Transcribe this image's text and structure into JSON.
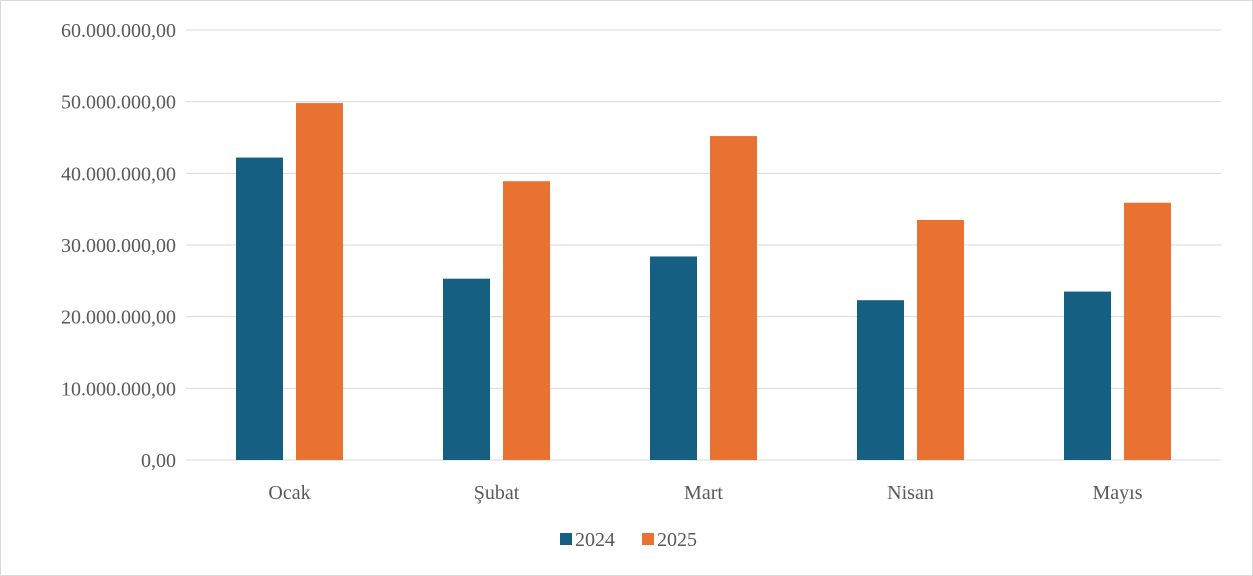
{
  "chart_data": {
    "type": "bar",
    "title": "",
    "xlabel": "",
    "ylabel": "",
    "categories": [
      "Ocak",
      "Şubat",
      "Mart",
      "Nisan",
      "Mayıs"
    ],
    "series": [
      {
        "name": "2024",
        "color": "#156082",
        "values": [
          42200000,
          25300000,
          28400000,
          22300000,
          23500000
        ]
      },
      {
        "name": "2025",
        "color": "#E97132",
        "values": [
          49800000,
          38900000,
          45200000,
          33500000,
          35900000
        ]
      }
    ],
    "ylim": [
      0,
      60000000
    ],
    "yticks": [
      0,
      10000000,
      20000000,
      30000000,
      40000000,
      50000000,
      60000000
    ],
    "ytick_labels": [
      "0,00",
      "10.000.000,00",
      "20.000.000,00",
      "30.000.000,00",
      "40.000.000,00",
      "50.000.000,00",
      "60.000.000,00"
    ],
    "grid": true,
    "legend": "bottom"
  }
}
